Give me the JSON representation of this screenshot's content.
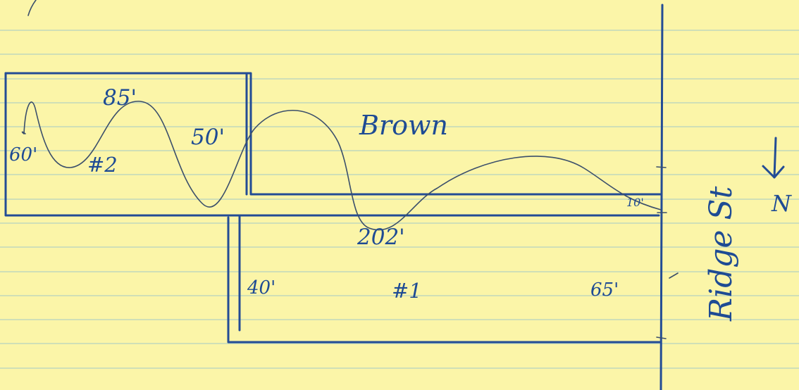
{
  "labels": {
    "top_dim": "85'",
    "left_dim": "60'",
    "lot_two": "#2",
    "mid_dim": "50'",
    "owner": "Brown",
    "small_dim": "10'",
    "bottom_dim": "202'",
    "lower_left_dim": "40'",
    "lot_one": "#1",
    "lower_right_dim": "65'",
    "street": "Ridge St",
    "north": "N"
  },
  "colors": {
    "paper": "#fbf5a8",
    "ink": "#234c95",
    "rule": "#9ec7c9"
  }
}
